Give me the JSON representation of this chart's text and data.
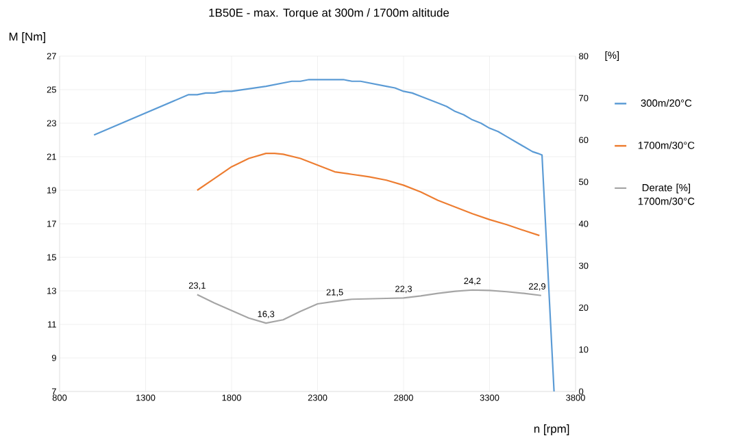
{
  "chart_data": {
    "type": "line",
    "title": "1B50E - max. Torque  at 300m / 1700m altitude",
    "xlabel": "n [rpm]",
    "ylabel": "M [Nm]",
    "y2label": "[%]",
    "xlim": [
      800,
      3800
    ],
    "xticks": [
      800,
      1300,
      1800,
      2300,
      2800,
      3300,
      3800
    ],
    "ylim": [
      7,
      27
    ],
    "yticks": [
      7,
      9,
      11,
      13,
      15,
      17,
      19,
      21,
      23,
      25,
      27
    ],
    "y2lim": [
      0,
      80
    ],
    "y2ticks": [
      0,
      10,
      20,
      30,
      40,
      50,
      60,
      70,
      80
    ],
    "grid": true,
    "legend": "right",
    "marker": "none",
    "line_style": "solid",
    "series": [
      {
        "name": "300m/20°C",
        "color": "#5b9bd5",
        "x": [
          1000,
          1550,
          1600,
          1650,
          1700,
          1750,
          1800,
          2000,
          2100,
          2150,
          2200,
          2250,
          2450,
          2500,
          2550,
          2700,
          2750,
          2800,
          2850,
          2900,
          3000,
          3050,
          3100,
          3150,
          3200,
          3250,
          3300,
          3350,
          3400,
          3450,
          3500,
          3550,
          3580,
          3605,
          3675
        ],
        "values": [
          22.3,
          24.7,
          24.7,
          24.8,
          24.8,
          24.9,
          24.9,
          25.2,
          25.4,
          25.5,
          25.5,
          25.6,
          25.6,
          25.5,
          25.5,
          25.2,
          25.1,
          24.9,
          24.8,
          24.6,
          24.2,
          24.0,
          23.7,
          23.5,
          23.2,
          23.0,
          22.7,
          22.5,
          22.2,
          21.9,
          21.6,
          21.3,
          21.2,
          21.1,
          7.0
        ]
      },
      {
        "name": "1700m/30°C",
        "color": "#ed7d31",
        "x": [
          1600,
          1700,
          1800,
          1900,
          2000,
          2050,
          2100,
          2200,
          2300,
          2400,
          2500,
          2600,
          2700,
          2800,
          2900,
          3000,
          3100,
          3200,
          3300,
          3400,
          3500,
          3590
        ],
        "values": [
          19.0,
          19.7,
          20.4,
          20.9,
          21.2,
          21.2,
          21.15,
          20.9,
          20.5,
          20.1,
          19.95,
          19.8,
          19.6,
          19.3,
          18.9,
          18.4,
          18.0,
          17.6,
          17.25,
          16.95,
          16.6,
          16.3
        ]
      },
      {
        "name": "Derate [%] 1700m/30°C",
        "color": "#a5a5a5",
        "axis": "y2",
        "x": [
          1600,
          1700,
          1800,
          1900,
          2000,
          2100,
          2200,
          2300,
          2400,
          2500,
          2600,
          2700,
          2800,
          2900,
          3000,
          3100,
          3200,
          3300,
          3400,
          3500,
          3600
        ],
        "values": [
          23.1,
          21.1,
          19.3,
          17.5,
          16.3,
          17.1,
          19.1,
          20.9,
          21.5,
          22.0,
          22.1,
          22.2,
          22.3,
          22.8,
          23.4,
          23.9,
          24.2,
          24.1,
          23.8,
          23.4,
          22.9
        ],
        "value_labels": [
          "23,1",
          null,
          null,
          null,
          "16,3",
          null,
          null,
          null,
          "21,5",
          null,
          null,
          null,
          "22,3",
          null,
          null,
          null,
          "24,2",
          null,
          null,
          null,
          "22,9"
        ]
      }
    ]
  }
}
